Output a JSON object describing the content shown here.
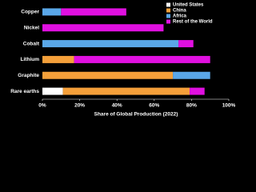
{
  "chart_data": {
    "type": "stacked-bar-horizontal",
    "x_label": "Share of Global Production (2022)",
    "categories": [
      "Copper",
      "Nickel",
      "Cobalt",
      "Lithium",
      "Graphite",
      "Rare earths"
    ],
    "series": [
      {
        "name": "United States",
        "color": "#ffffff",
        "values": [
          0,
          0,
          0,
          0,
          0,
          11
        ]
      },
      {
        "name": "China",
        "color": "#f5a03a",
        "values": [
          0,
          0,
          0,
          17,
          70,
          68
        ]
      },
      {
        "name": "Africa",
        "color": "#5aa7e8",
        "values": [
          10,
          0,
          73,
          0,
          20,
          0
        ]
      },
      {
        "name": "Rest of the World",
        "color": "#e010e0",
        "values": [
          35,
          65,
          8,
          73,
          0,
          8
        ]
      }
    ],
    "xlim": [
      0,
      100
    ],
    "xticks": [
      {
        "value": 0,
        "label": "0%"
      },
      {
        "value": 20,
        "label": "20%"
      },
      {
        "value": 40,
        "label": "40%"
      },
      {
        "value": 60,
        "label": "60%"
      },
      {
        "value": 80,
        "label": "80%"
      },
      {
        "value": 100,
        "label": "100%"
      }
    ],
    "legend_position": "upper right"
  }
}
